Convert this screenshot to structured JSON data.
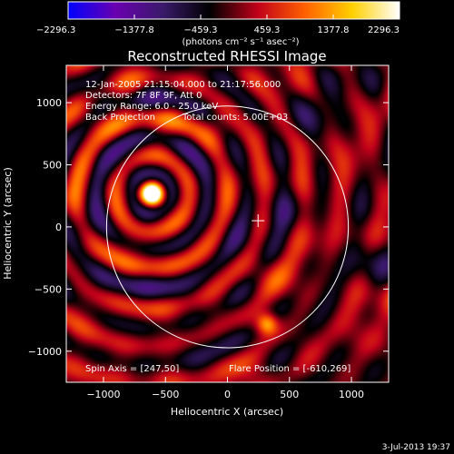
{
  "chart_data": {
    "type": "heatmap",
    "title": "Reconstructed RHESSI Image",
    "xlabel": "Heliocentric X (arcsec)",
    "ylabel": "Heliocentric Y (arcsec)",
    "xlim": [
      -1300,
      1300
    ],
    "ylim": [
      -1250,
      1300
    ],
    "x_ticks": [
      -1000,
      -500,
      0,
      500,
      1000
    ],
    "y_ticks": [
      -1000,
      -500,
      0,
      500,
      1000
    ],
    "x_tick_labels": [
      "−1000",
      "−500",
      "0",
      "500",
      "1000"
    ],
    "y_tick_labels": [
      "−1000",
      "−500",
      "0",
      "500",
      "1000"
    ],
    "colorbar": {
      "min": -2296.3,
      "max": 2296.3,
      "tick_labels": [
        "−2296.3",
        "−1377.8",
        "−459.3",
        "459.3",
        "1377.8",
        "2296.3"
      ],
      "unit_label": "(photons cm⁻² s⁻¹ asec⁻²)"
    },
    "annotations": {
      "time_range": "12-Jan-2005 21:15:04.000 to 21:17:56.000",
      "detectors": "Detectors: 7F 8F 9F, Att 0",
      "energy_range": "Energy Range: 6.0 - 25.0 keV",
      "method": "Back Projection",
      "total_counts": "Total counts: 5.00E+03",
      "spin_axis": "Spin Axis = [247,50]",
      "flare_position": "Flare Position = [-610,269]"
    },
    "solar_disk": {
      "center_x": 0,
      "center_y": 0,
      "radius": 975
    },
    "spin_axis_marker": {
      "x": 247,
      "y": 50
    },
    "flare_source": {
      "x": -610,
      "y": 269
    },
    "timestamp": "3-Jul-2013 19:37"
  },
  "colors": {
    "background": "#000000",
    "colormap": [
      "#0000ff",
      "#6a00b0",
      "#3a1a6a",
      "#000000",
      "#c0001a",
      "#ff6000",
      "#ffd000",
      "#ffffff"
    ]
  }
}
